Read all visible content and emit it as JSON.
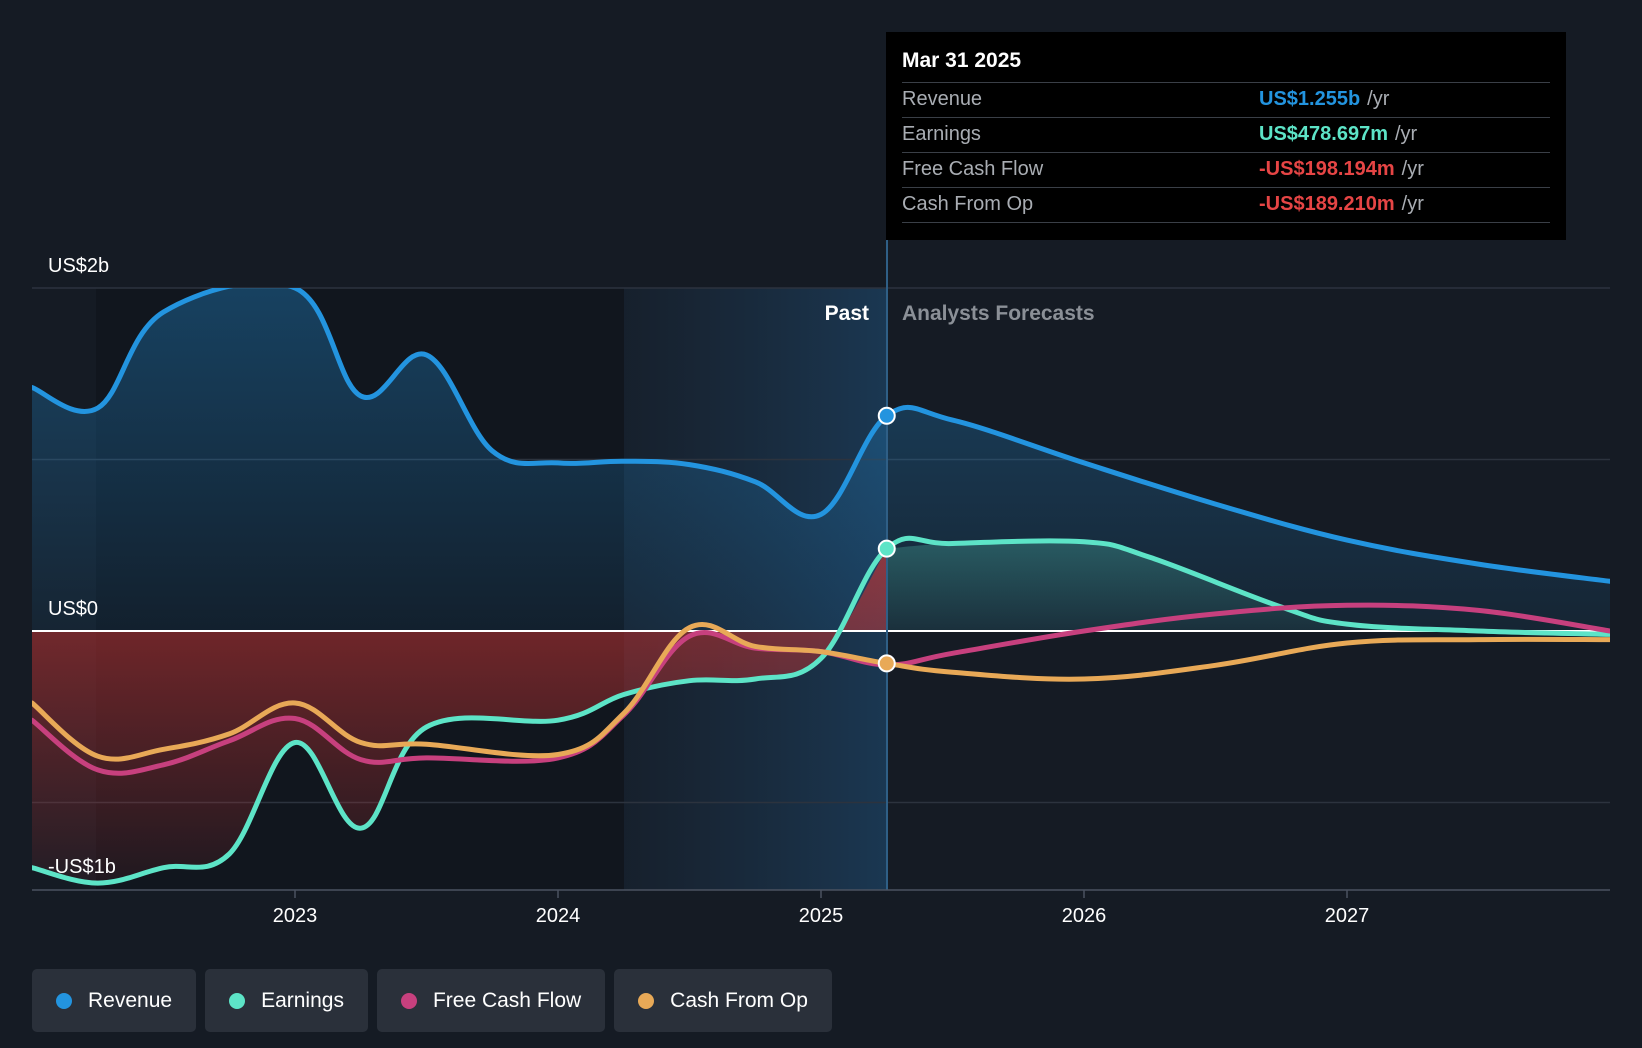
{
  "colors": {
    "background": "#151b24",
    "revenue": "#2394df",
    "earnings": "#5de4c7",
    "free_cash_flow": "#c7407e",
    "cash_from_op": "#e8a957",
    "negative_fill": "#b83232",
    "tooltip_positive_revenue": "#2394df",
    "tooltip_positive_earnings": "#5de4c7",
    "tooltip_negative": "#e64545"
  },
  "regions": {
    "past_label": "Past",
    "forecast_label": "Analysts Forecasts"
  },
  "tooltip": {
    "date": "Mar 31 2025",
    "rows": [
      {
        "label": "Revenue",
        "value": "US$1.255b",
        "unit": "/yr",
        "color_key": "revenue"
      },
      {
        "label": "Earnings",
        "value": "US$478.697m",
        "unit": "/yr",
        "color_key": "earnings"
      },
      {
        "label": "Free Cash Flow",
        "value": "-US$198.194m",
        "unit": "/yr",
        "color_key": "negative"
      },
      {
        "label": "Cash From Op",
        "value": "-US$189.210m",
        "unit": "/yr",
        "color_key": "negative"
      }
    ]
  },
  "legend": [
    {
      "label": "Revenue",
      "color": "#2394df",
      "icon": "revenue-dot-icon"
    },
    {
      "label": "Earnings",
      "color": "#5de4c7",
      "icon": "earnings-dot-icon"
    },
    {
      "label": "Free Cash Flow",
      "color": "#c7407e",
      "icon": "free-cash-flow-dot-icon"
    },
    {
      "label": "Cash From Op",
      "color": "#e8a957",
      "icon": "cash-from-op-dot-icon"
    }
  ],
  "chart_data": {
    "type": "line",
    "title": "",
    "xlabel": "",
    "ylabel": "",
    "x_ticks": [
      "2023",
      "2024",
      "2025",
      "2026",
      "2027"
    ],
    "x_tick_values": [
      2023.0,
      2024.0,
      2025.0,
      2026.0,
      2027.0
    ],
    "xlim": [
      2021.76,
      2028.0
    ],
    "y_tick_labels": [
      "US$2b",
      "US$0",
      "-US$1b"
    ],
    "y_tick_values": [
      2.0,
      0.0,
      -1.0
    ],
    "ylim": [
      -1.5,
      2.0
    ],
    "units": "US$ billions",
    "grid": true,
    "divider_date": 2025.25,
    "highlight_start": 2024.25,
    "legend_position": "bottom-left",
    "series": [
      {
        "name": "Revenue",
        "key": "revenue",
        "points": [
          [
            2022.0,
            1.42
          ],
          [
            2022.25,
            1.3
          ],
          [
            2022.5,
            1.86
          ],
          [
            2023.0,
            2.0
          ],
          [
            2023.25,
            1.37
          ],
          [
            2023.5,
            1.61
          ],
          [
            2023.75,
            1.05
          ],
          [
            2024.0,
            0.98
          ],
          [
            2024.25,
            0.99
          ],
          [
            2024.5,
            0.97
          ],
          [
            2024.75,
            0.87
          ],
          [
            2025.0,
            0.68
          ],
          [
            2025.25,
            1.255
          ],
          [
            2025.5,
            1.23
          ],
          [
            2026.0,
            0.98
          ],
          [
            2026.5,
            0.74
          ],
          [
            2027.0,
            0.53
          ],
          [
            2027.5,
            0.39
          ],
          [
            2028.0,
            0.29
          ]
        ]
      },
      {
        "name": "Earnings",
        "key": "earnings",
        "points": [
          [
            2022.0,
            -1.38
          ],
          [
            2022.25,
            -1.47
          ],
          [
            2022.5,
            -1.38
          ],
          [
            2022.75,
            -1.3
          ],
          [
            2023.0,
            -0.65
          ],
          [
            2023.25,
            -1.15
          ],
          [
            2023.5,
            -0.56
          ],
          [
            2024.0,
            -0.52
          ],
          [
            2024.25,
            -0.37
          ],
          [
            2024.5,
            -0.29
          ],
          [
            2024.75,
            -0.28
          ],
          [
            2025.0,
            -0.16
          ],
          [
            2025.25,
            0.48
          ],
          [
            2025.5,
            0.51
          ],
          [
            2026.0,
            0.52
          ],
          [
            2026.25,
            0.43
          ],
          [
            2026.75,
            0.14
          ],
          [
            2027.0,
            0.04
          ],
          [
            2027.5,
            0.0
          ],
          [
            2028.0,
            -0.02
          ]
        ]
      },
      {
        "name": "Free Cash Flow",
        "key": "free_cash_flow",
        "points": [
          [
            2022.0,
            -0.52
          ],
          [
            2022.25,
            -0.81
          ],
          [
            2022.5,
            -0.78
          ],
          [
            2022.75,
            -0.64
          ],
          [
            2023.0,
            -0.51
          ],
          [
            2023.25,
            -0.75
          ],
          [
            2023.5,
            -0.74
          ],
          [
            2024.0,
            -0.74
          ],
          [
            2024.25,
            -0.49
          ],
          [
            2024.5,
            -0.03
          ],
          [
            2024.75,
            -0.1
          ],
          [
            2025.0,
            -0.12
          ],
          [
            2025.25,
            -0.198
          ],
          [
            2025.5,
            -0.13
          ],
          [
            2026.0,
            0.0
          ],
          [
            2026.5,
            0.1
          ],
          [
            2027.0,
            0.15
          ],
          [
            2027.5,
            0.12
          ],
          [
            2028.0,
            0.0
          ]
        ]
      },
      {
        "name": "Cash From Op",
        "key": "cash_from_op",
        "points": [
          [
            2022.0,
            -0.42
          ],
          [
            2022.25,
            -0.73
          ],
          [
            2022.5,
            -0.69
          ],
          [
            2022.75,
            -0.6
          ],
          [
            2023.0,
            -0.42
          ],
          [
            2023.25,
            -0.65
          ],
          [
            2023.5,
            -0.66
          ],
          [
            2024.0,
            -0.72
          ],
          [
            2024.25,
            -0.48
          ],
          [
            2024.5,
            0.02
          ],
          [
            2024.75,
            -0.09
          ],
          [
            2025.0,
            -0.12
          ],
          [
            2025.25,
            -0.189
          ],
          [
            2025.5,
            -0.24
          ],
          [
            2026.0,
            -0.28
          ],
          [
            2026.5,
            -0.2
          ],
          [
            2027.0,
            -0.07
          ],
          [
            2027.5,
            -0.05
          ],
          [
            2028.0,
            -0.05
          ]
        ]
      }
    ],
    "highlight_points": [
      {
        "series": "revenue",
        "x": 2025.25,
        "y": 1.255
      },
      {
        "series": "earnings",
        "x": 2025.25,
        "y": 0.48
      },
      {
        "series": "cash_from_op",
        "x": 2025.25,
        "y": -0.189
      }
    ]
  }
}
